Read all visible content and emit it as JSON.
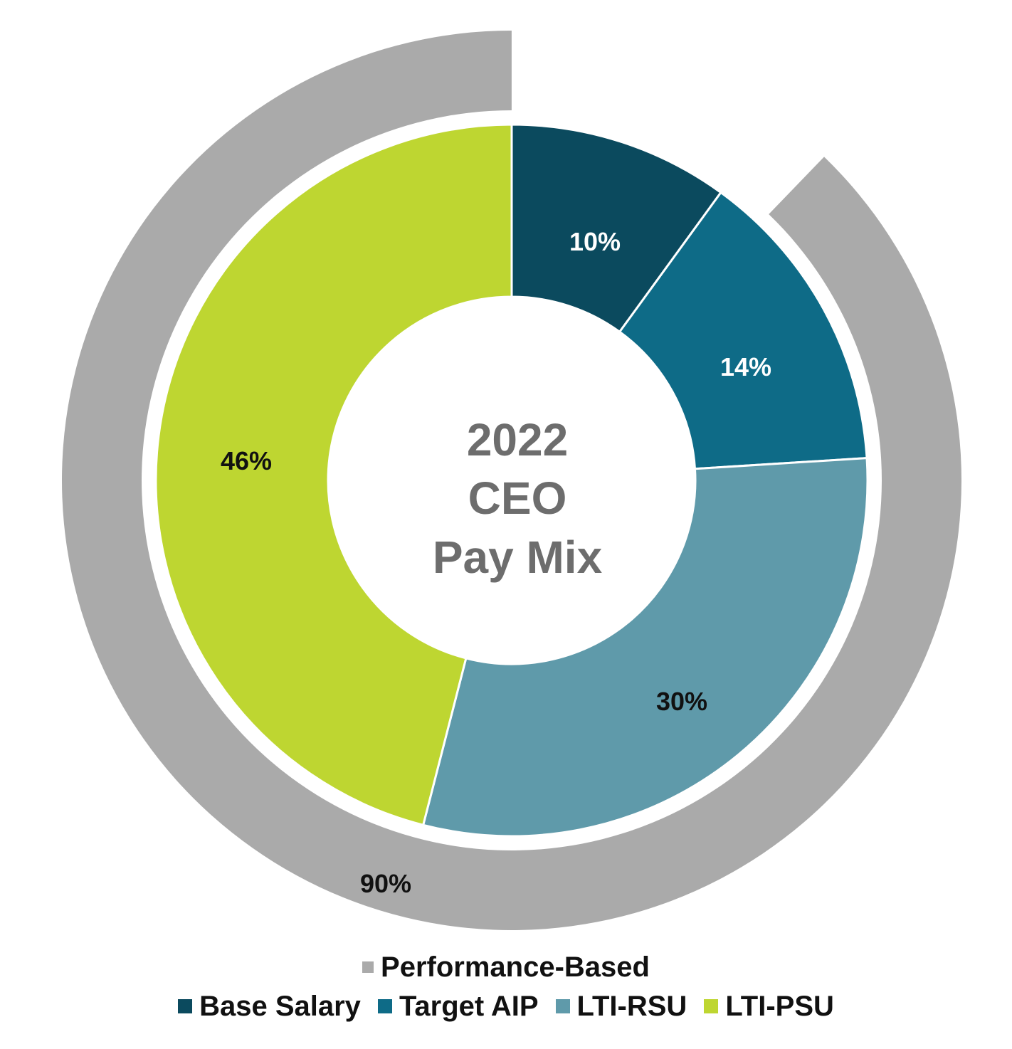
{
  "chart_data": {
    "type": "pie",
    "title": "2022 CEO Pay Mix",
    "title_lines": [
      "2022",
      "CEO",
      "Pay Mix"
    ],
    "inner_series": [
      {
        "name": "Base Salary",
        "value": 10,
        "label": "10%",
        "color": "#0b4a5e"
      },
      {
        "name": "Target AIP",
        "value": 14,
        "label": "14%",
        "color": "#0e6b87"
      },
      {
        "name": "LTI-RSU",
        "value": 30,
        "label": "30%",
        "color": "#5f9aaa"
      },
      {
        "name": "LTI-PSU",
        "value": 46,
        "label": "46%",
        "color": "#bed631"
      }
    ],
    "outer_series": [
      {
        "name": "Performance-Based",
        "value": 90,
        "label": "90%",
        "color": "#aaaaaa"
      }
    ],
    "legend": {
      "row1": [
        {
          "name": "Performance-Based",
          "color": "#aaaaaa"
        }
      ],
      "row2": [
        {
          "name": "Base Salary",
          "color": "#0b4a5e"
        },
        {
          "name": "Target AIP",
          "color": "#0e6b87"
        },
        {
          "name": "LTI-RSU",
          "color": "#5f9aaa"
        },
        {
          "name": "LTI-PSU",
          "color": "#bed631"
        }
      ],
      "placement": "bottom-center"
    }
  }
}
